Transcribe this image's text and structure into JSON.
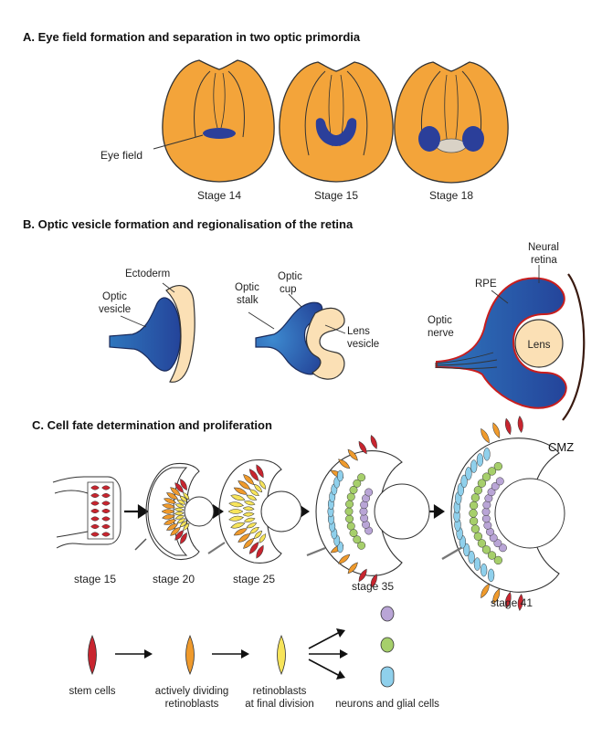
{
  "panel_a": {
    "title": "A.  Eye field formation and separation in two optic primordia",
    "eye_field_label": "Eye field",
    "stages": [
      "Stage 14",
      "Stage 15",
      "Stage 18"
    ]
  },
  "panel_b": {
    "title": "B.  Optic vesicle formation and regionalisation of the retina",
    "labels": {
      "ectoderm": "Ectoderm",
      "optic_vesicle_1": "Optic",
      "optic_vesicle_2": "vesicle",
      "optic_stalk_1": "Optic",
      "optic_stalk_2": "stalk",
      "optic_cup_1": "Optic",
      "optic_cup_2": "cup",
      "lens_vesicle_1": "Lens",
      "lens_vesicle_2": "vesicle",
      "neural_retina_1": "Neural",
      "neural_retina_2": "retina",
      "rpe": "RPE",
      "optic_nerve_1": "Optic",
      "optic_nerve_2": "nerve",
      "lens": "Lens"
    }
  },
  "panel_c": {
    "title": "C.  Cell fate determination and proliferation",
    "stages": [
      "stage 15",
      "stage 20",
      "stage 25",
      "stage 35",
      "stage 41"
    ],
    "cmz": "CMZ",
    "legend": {
      "stem_cells": "stem cells",
      "dividing_1": "actively dividing",
      "dividing_2": "retinoblasts",
      "final_1": "retinoblasts",
      "final_2": "at final division",
      "neurons": "neurons and glial cells"
    }
  },
  "colors": {
    "embryo": "#f3a43a",
    "eye_blue": "#2b3f9a",
    "vesicle_blue": "#2f76bd",
    "ectoderm": "#fbe0b5",
    "rpe_red": "#c81e1e",
    "stem_red": "#c8252f",
    "dividing_orange": "#ef9a2c",
    "final_yellow": "#f7e45a",
    "neuron_purple": "#b9a5d6",
    "neuron_green": "#a6cf6b",
    "neuron_blue": "#8fd0ec"
  }
}
